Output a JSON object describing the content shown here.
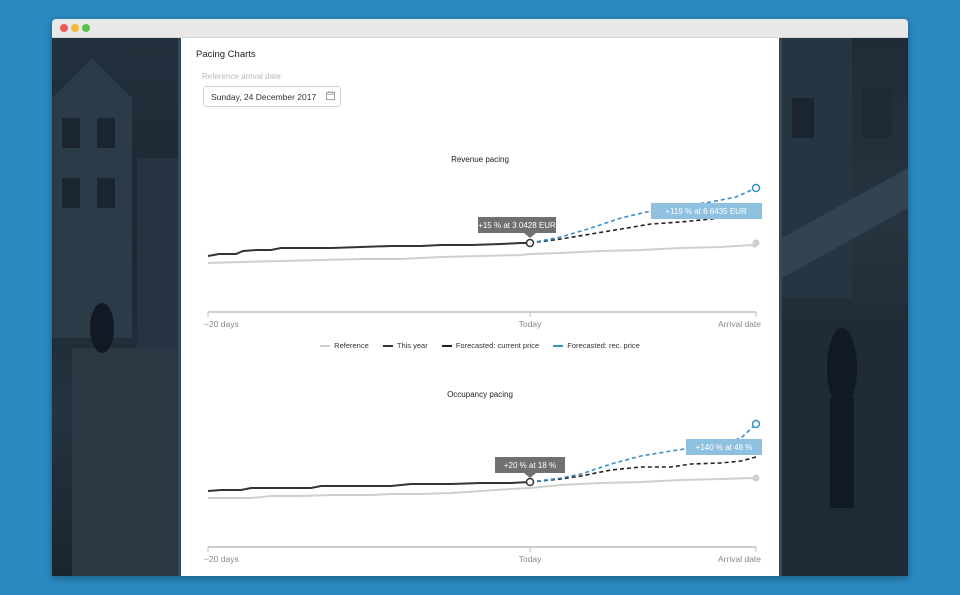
{
  "window": {
    "title_dots": [
      "close",
      "minimize",
      "maximize"
    ]
  },
  "page": {
    "title": "Pacing Charts",
    "reference_label": "Reference arrival date:",
    "date_value": "Sunday, 24 December 2017",
    "date_icon": "calendar-icon"
  },
  "legend": {
    "reference": "Reference",
    "this_year": "This year",
    "forecast_current": "Forecasted: current price",
    "forecast_rec": "Forecasted: rec. price"
  },
  "colors": {
    "reference": "#cfcfcf",
    "this_year": "#333333",
    "forecast_current": "#222222",
    "forecast_rec": "#3a8fc7",
    "tooltip_dark": "#707070",
    "tooltip_blue": "#8ec0e0"
  },
  "charts": [
    {
      "title": "Revenue pacing",
      "x_tick_labels": [
        "−20 days",
        "Today",
        "Arrival date"
      ],
      "tooltip_today": "+15 % at 3 0428 EUR",
      "tooltip_forecast": "+119 % at 6 6435 EUR"
    },
    {
      "title": "Occupancy pacing",
      "x_tick_labels": [
        "−20 days",
        "Today",
        "Arrival date"
      ],
      "tooltip_today": "+20 % at 18 %",
      "tooltip_forecast": "+140 % at 48 %"
    }
  ]
}
